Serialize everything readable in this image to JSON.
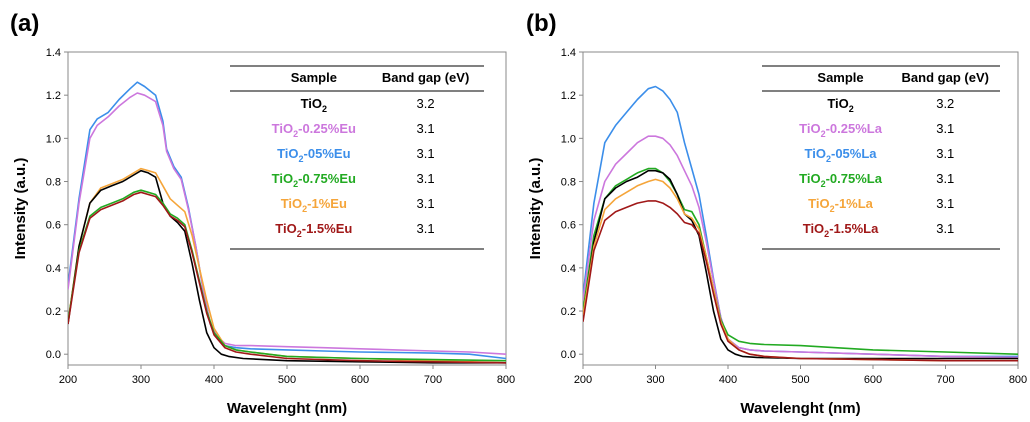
{
  "chart_data": [
    {
      "panel_label": "(a)",
      "type": "line",
      "xlabel": "Wavelenght (nm)",
      "ylabel": "Intensity (a.u.)",
      "xlim": [
        200,
        800
      ],
      "ylim": [
        -0.05,
        1.4
      ],
      "xticks": [
        200,
        300,
        400,
        500,
        600,
        700,
        800
      ],
      "yticks": [
        0.0,
        0.2,
        0.4,
        0.6,
        0.8,
        1.0,
        1.2,
        1.4
      ],
      "ytick_labels": [
        "0.0",
        "0.2",
        "0.4",
        "0.6",
        "0.8",
        "1.0",
        "1.2",
        "1.4"
      ],
      "grid": false,
      "table": {
        "headers": [
          "Sample",
          "Band gap (eV)"
        ],
        "rows": [
          {
            "base": "TiO",
            "sub": "2",
            "suffix": "",
            "value": "3.2",
            "color": "#000000"
          },
          {
            "base": "TiO",
            "sub": "2",
            "suffix": "-0.25%Eu",
            "value": "3.1",
            "color": "#CC77DD"
          },
          {
            "base": "TiO",
            "sub": "2",
            "suffix": "-05%Eu",
            "value": "3.1",
            "color": "#3B8EEA"
          },
          {
            "base": "TiO",
            "sub": "2",
            "suffix": "-0.75%Eu",
            "value": "3.1",
            "color": "#22AA22"
          },
          {
            "base": "TiO",
            "sub": "2",
            "suffix": "-1%Eu",
            "value": "3.1",
            "color": "#F5A53A"
          },
          {
            "base": "TiO",
            "sub": "2",
            "suffix": "-1.5%Eu",
            "value": "3.1",
            "color": "#A01818"
          }
        ]
      },
      "series": [
        {
          "color": "#3B8EEA",
          "x": [
            200,
            215,
            230,
            240,
            255,
            270,
            285,
            295,
            305,
            320,
            330,
            335,
            345,
            355,
            365,
            375,
            385,
            395,
            405,
            415,
            430,
            450,
            500,
            550,
            600,
            650,
            700,
            750,
            800
          ],
          "y": [
            0.32,
            0.72,
            1.04,
            1.09,
            1.12,
            1.18,
            1.23,
            1.26,
            1.24,
            1.2,
            1.08,
            0.95,
            0.87,
            0.82,
            0.68,
            0.5,
            0.3,
            0.14,
            0.07,
            0.04,
            0.03,
            0.025,
            0.02,
            0.015,
            0.01,
            0.008,
            0.005,
            0.0,
            -0.02
          ]
        },
        {
          "color": "#CC77DD",
          "x": [
            200,
            215,
            230,
            240,
            255,
            270,
            285,
            295,
            305,
            320,
            330,
            335,
            345,
            355,
            365,
            375,
            385,
            395,
            405,
            415,
            430,
            450,
            500,
            550,
            600,
            650,
            700,
            750,
            800
          ],
          "y": [
            0.3,
            0.7,
            1.0,
            1.06,
            1.1,
            1.15,
            1.19,
            1.21,
            1.2,
            1.17,
            1.06,
            0.94,
            0.86,
            0.81,
            0.67,
            0.5,
            0.3,
            0.14,
            0.08,
            0.05,
            0.04,
            0.04,
            0.035,
            0.03,
            0.025,
            0.02,
            0.015,
            0.01,
            0.0
          ]
        },
        {
          "color": "#F5A53A",
          "x": [
            200,
            215,
            230,
            245,
            260,
            275,
            290,
            300,
            310,
            320,
            330,
            340,
            350,
            360,
            370,
            380,
            390,
            400,
            415,
            430,
            450,
            500,
            600,
            700,
            800
          ],
          "y": [
            0.15,
            0.5,
            0.7,
            0.77,
            0.79,
            0.81,
            0.84,
            0.86,
            0.85,
            0.84,
            0.78,
            0.72,
            0.69,
            0.66,
            0.55,
            0.4,
            0.25,
            0.12,
            0.04,
            0.02,
            0.01,
            -0.01,
            -0.02,
            -0.03,
            -0.04
          ]
        },
        {
          "color": "#000000",
          "x": [
            200,
            215,
            230,
            245,
            260,
            275,
            290,
            300,
            310,
            320,
            330,
            340,
            350,
            360,
            370,
            380,
            390,
            400,
            410,
            420,
            440,
            500,
            600,
            700,
            800
          ],
          "y": [
            0.14,
            0.5,
            0.7,
            0.76,
            0.78,
            0.8,
            0.83,
            0.85,
            0.84,
            0.82,
            0.7,
            0.64,
            0.61,
            0.57,
            0.42,
            0.25,
            0.1,
            0.03,
            0.0,
            -0.01,
            -0.02,
            -0.03,
            -0.035,
            -0.04,
            -0.04
          ]
        },
        {
          "color": "#22AA22",
          "x": [
            200,
            215,
            230,
            245,
            260,
            275,
            290,
            300,
            310,
            320,
            330,
            340,
            350,
            360,
            370,
            380,
            390,
            400,
            415,
            430,
            450,
            500,
            600,
            700,
            800
          ],
          "y": [
            0.15,
            0.48,
            0.64,
            0.68,
            0.7,
            0.72,
            0.75,
            0.76,
            0.75,
            0.74,
            0.7,
            0.65,
            0.63,
            0.6,
            0.48,
            0.34,
            0.2,
            0.1,
            0.04,
            0.02,
            0.01,
            -0.01,
            -0.02,
            -0.025,
            -0.03
          ]
        },
        {
          "color": "#A01818",
          "x": [
            200,
            215,
            230,
            245,
            260,
            275,
            290,
            300,
            310,
            320,
            330,
            340,
            350,
            360,
            370,
            380,
            390,
            400,
            415,
            430,
            450,
            500,
            600,
            700,
            800
          ],
          "y": [
            0.14,
            0.47,
            0.63,
            0.67,
            0.69,
            0.71,
            0.74,
            0.75,
            0.74,
            0.73,
            0.69,
            0.64,
            0.62,
            0.59,
            0.47,
            0.33,
            0.19,
            0.09,
            0.03,
            0.01,
            0.0,
            -0.02,
            -0.03,
            -0.035,
            -0.04
          ]
        }
      ]
    },
    {
      "panel_label": "(b)",
      "type": "line",
      "xlabel": "Wavelenght (nm)",
      "ylabel": "Intensity (a.u.)",
      "xlim": [
        200,
        800
      ],
      "ylim": [
        -0.05,
        1.4
      ],
      "xticks": [
        200,
        300,
        400,
        500,
        600,
        700,
        800
      ],
      "yticks": [
        0.0,
        0.2,
        0.4,
        0.6,
        0.8,
        1.0,
        1.2,
        1.4
      ],
      "ytick_labels": [
        "0.0",
        "0.2",
        "0.4",
        "0.6",
        "0.8",
        "1.0",
        "1.2",
        "1.4"
      ],
      "grid": false,
      "table": {
        "headers": [
          "Sample",
          "Band gap (eV)"
        ],
        "rows": [
          {
            "base": "TiO",
            "sub": "2",
            "suffix": "",
            "value": "3.2",
            "color": "#000000"
          },
          {
            "base": "TiO",
            "sub": "2",
            "suffix": "-0.25%La",
            "value": "3.1",
            "color": "#CC77DD"
          },
          {
            "base": "TiO",
            "sub": "2",
            "suffix": "-05%La",
            "value": "3.1",
            "color": "#3B8EEA"
          },
          {
            "base": "TiO",
            "sub": "2",
            "suffix": "-0.75%La",
            "value": "3.1",
            "color": "#22AA22"
          },
          {
            "base": "TiO",
            "sub": "2",
            "suffix": "-1%La",
            "value": "3.1",
            "color": "#F5A53A"
          },
          {
            "base": "TiO",
            "sub": "2",
            "suffix": "-1.5%La",
            "value": "3.1",
            "color": "#A01818"
          }
        ]
      },
      "series": [
        {
          "color": "#3B8EEA",
          "x": [
            200,
            215,
            230,
            245,
            260,
            275,
            290,
            300,
            310,
            320,
            330,
            340,
            350,
            360,
            370,
            380,
            390,
            400,
            415,
            430,
            450,
            500,
            600,
            700,
            800
          ],
          "y": [
            0.27,
            0.7,
            0.98,
            1.06,
            1.12,
            1.18,
            1.23,
            1.24,
            1.22,
            1.18,
            1.12,
            0.98,
            0.86,
            0.74,
            0.55,
            0.35,
            0.17,
            0.07,
            0.03,
            0.02,
            0.015,
            0.01,
            0.0,
            -0.01,
            -0.01
          ]
        },
        {
          "color": "#CC77DD",
          "x": [
            200,
            215,
            230,
            245,
            260,
            275,
            290,
            300,
            310,
            320,
            330,
            340,
            350,
            360,
            370,
            380,
            390,
            400,
            415,
            430,
            450,
            500,
            600,
            700,
            800
          ],
          "y": [
            0.25,
            0.62,
            0.8,
            0.88,
            0.93,
            0.98,
            1.01,
            1.01,
            1.0,
            0.97,
            0.92,
            0.85,
            0.78,
            0.68,
            0.52,
            0.34,
            0.17,
            0.07,
            0.03,
            0.02,
            0.015,
            0.01,
            0.0,
            -0.01,
            -0.015
          ]
        },
        {
          "color": "#22AA22",
          "x": [
            200,
            215,
            230,
            245,
            260,
            275,
            290,
            300,
            310,
            320,
            330,
            340,
            350,
            360,
            370,
            380,
            390,
            400,
            415,
            430,
            450,
            500,
            600,
            700,
            800
          ],
          "y": [
            0.2,
            0.55,
            0.72,
            0.78,
            0.81,
            0.84,
            0.86,
            0.86,
            0.84,
            0.8,
            0.74,
            0.67,
            0.66,
            0.6,
            0.45,
            0.3,
            0.16,
            0.09,
            0.06,
            0.05,
            0.045,
            0.04,
            0.02,
            0.01,
            0.0
          ]
        },
        {
          "color": "#000000",
          "x": [
            200,
            215,
            230,
            245,
            260,
            275,
            290,
            300,
            310,
            320,
            330,
            340,
            350,
            360,
            370,
            380,
            390,
            400,
            410,
            420,
            440,
            500,
            600,
            700,
            800
          ],
          "y": [
            0.17,
            0.52,
            0.72,
            0.77,
            0.8,
            0.82,
            0.85,
            0.85,
            0.84,
            0.81,
            0.74,
            0.65,
            0.62,
            0.55,
            0.38,
            0.2,
            0.07,
            0.02,
            0.0,
            -0.01,
            -0.015,
            -0.02,
            -0.02,
            -0.02,
            -0.02
          ]
        },
        {
          "color": "#F5A53A",
          "x": [
            200,
            215,
            230,
            245,
            260,
            275,
            290,
            300,
            310,
            320,
            330,
            340,
            350,
            360,
            370,
            380,
            390,
            400,
            415,
            430,
            450,
            500,
            600,
            700,
            800
          ],
          "y": [
            0.18,
            0.5,
            0.67,
            0.72,
            0.75,
            0.78,
            0.8,
            0.81,
            0.8,
            0.77,
            0.72,
            0.65,
            0.63,
            0.58,
            0.45,
            0.3,
            0.15,
            0.07,
            0.02,
            0.0,
            -0.01,
            -0.02,
            -0.025,
            -0.03,
            -0.03
          ]
        },
        {
          "color": "#A01818",
          "x": [
            200,
            215,
            230,
            245,
            260,
            275,
            290,
            300,
            310,
            320,
            330,
            340,
            350,
            360,
            370,
            380,
            390,
            400,
            415,
            430,
            450,
            500,
            600,
            700,
            800
          ],
          "y": [
            0.15,
            0.48,
            0.62,
            0.66,
            0.68,
            0.7,
            0.71,
            0.71,
            0.7,
            0.68,
            0.65,
            0.61,
            0.6,
            0.56,
            0.43,
            0.28,
            0.14,
            0.06,
            0.02,
            0.0,
            -0.01,
            -0.02,
            -0.025,
            -0.03,
            -0.03
          ]
        }
      ]
    }
  ]
}
